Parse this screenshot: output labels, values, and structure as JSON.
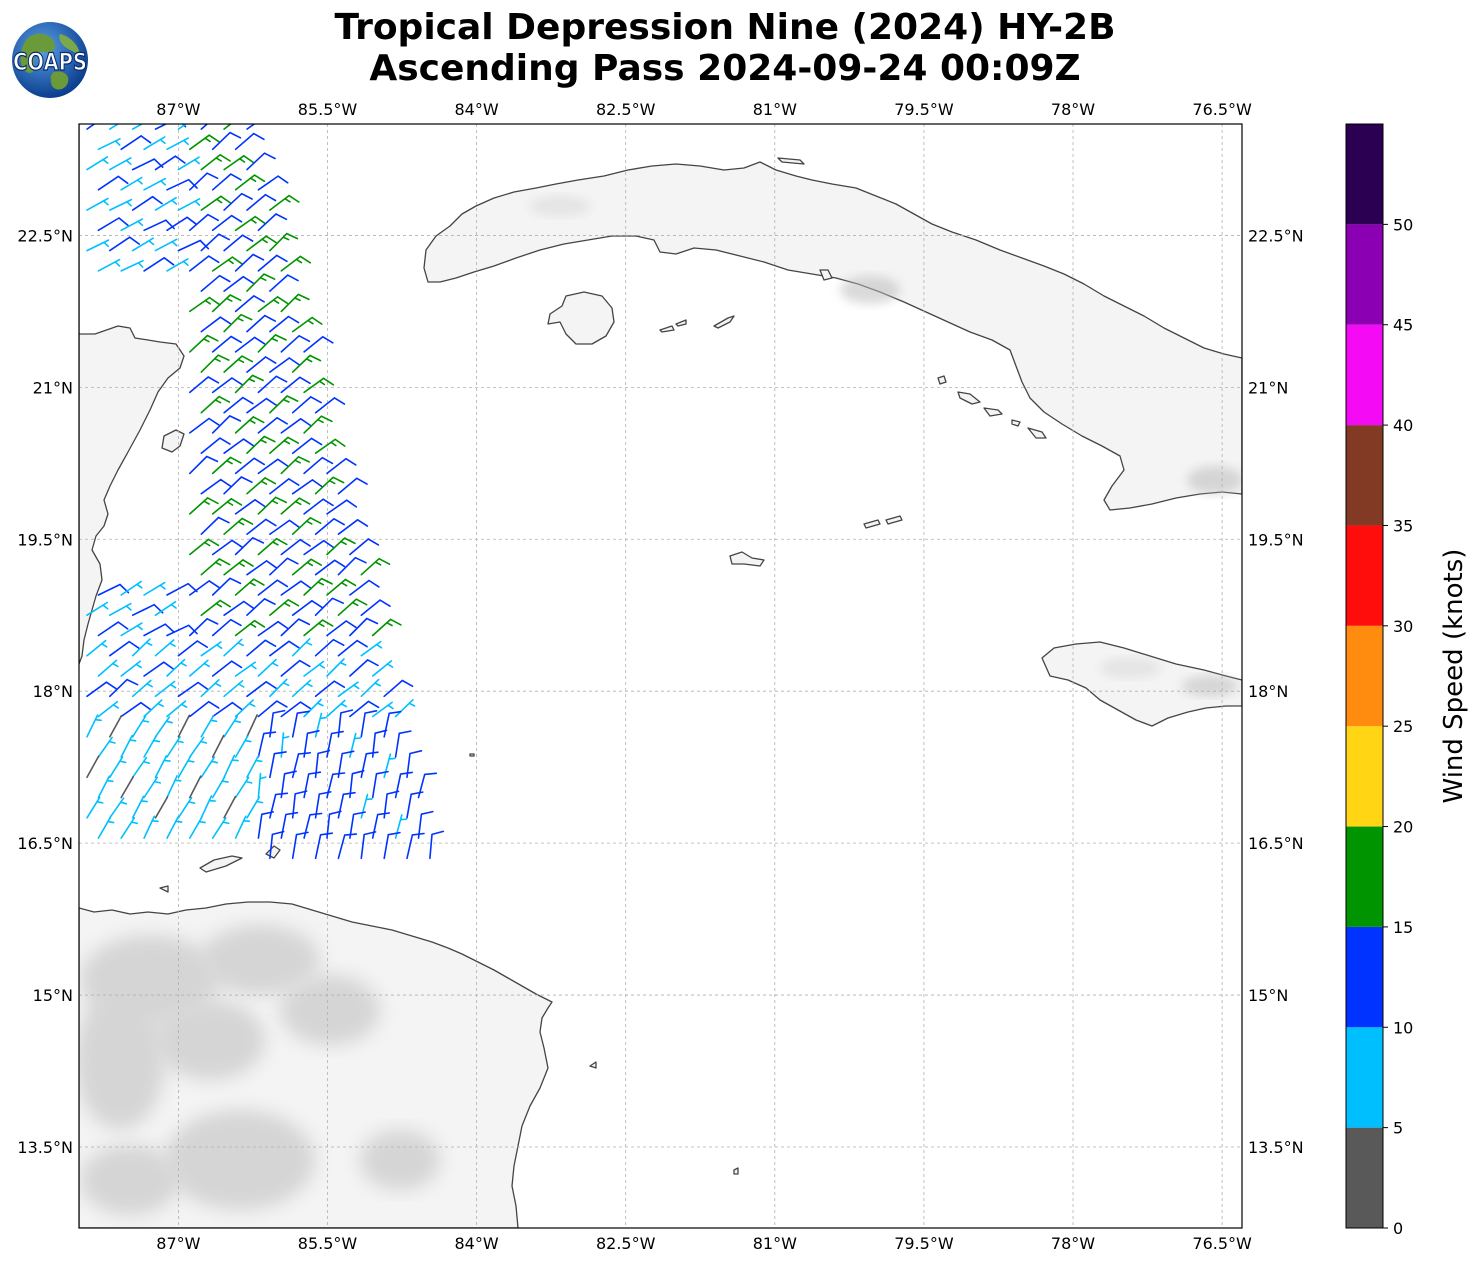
{
  "title": {
    "line1": "Tropical Depression Nine (2024) HY-2B",
    "line2": "Ascending Pass 2024-09-24 00:09Z"
  },
  "logo": {
    "text": "COAPS",
    "icon": "globe-logo"
  },
  "map": {
    "lon_range": [
      -88.0,
      -76.3
    ],
    "lat_range": [
      12.7,
      23.6
    ],
    "lon_ticks": [
      {
        "value": -87.0,
        "label": "87°W"
      },
      {
        "value": -85.5,
        "label": "85.5°W"
      },
      {
        "value": -84.0,
        "label": "84°W"
      },
      {
        "value": -82.5,
        "label": "82.5°W"
      },
      {
        "value": -81.0,
        "label": "81°W"
      },
      {
        "value": -79.5,
        "label": "79.5°W"
      },
      {
        "value": -78.0,
        "label": "78°W"
      },
      {
        "value": -76.5,
        "label": "76.5°W"
      }
    ],
    "lat_ticks": [
      {
        "value": 22.5,
        "label": "22.5°N"
      },
      {
        "value": 21.0,
        "label": "21°N"
      },
      {
        "value": 19.5,
        "label": "19.5°N"
      },
      {
        "value": 18.0,
        "label": "18°N"
      },
      {
        "value": 16.5,
        "label": "16.5°N"
      },
      {
        "value": 15.0,
        "label": "15°N"
      },
      {
        "value": 13.5,
        "label": "13.5°N"
      }
    ],
    "gridlines": true,
    "land_fill": "#f4f4f4",
    "coast_color": "#444444",
    "terrain_shade": "#bcbcbc"
  },
  "colorbar": {
    "label": "Wind Speed (knots)",
    "ticks": [
      "0",
      "5",
      "10",
      "15",
      "20",
      "25",
      "30",
      "35",
      "40",
      "45",
      "50"
    ],
    "bins": [
      {
        "min": 0,
        "max": 5,
        "color": "#595959"
      },
      {
        "min": 5,
        "max": 10,
        "color": "#00bfff"
      },
      {
        "min": 10,
        "max": 15,
        "color": "#0033ff"
      },
      {
        "min": 15,
        "max": 20,
        "color": "#009400"
      },
      {
        "min": 20,
        "max": 25,
        "color": "#ffd514"
      },
      {
        "min": 25,
        "max": 30,
        "color": "#ff8c0f"
      },
      {
        "min": 30,
        "max": 35,
        "color": "#ff0d0d"
      },
      {
        "min": 35,
        "max": 40,
        "color": "#833a25"
      },
      {
        "min": 40,
        "max": 45,
        "color": "#f50af5"
      },
      {
        "min": 45,
        "max": 50,
        "color": "#8c00b3"
      },
      {
        "min": 50,
        "max": 55,
        "color": "#2b0052"
      }
    ]
  },
  "chart_data": {
    "type": "scatter",
    "title": "Tropical Depression Nine (2024) HY-2B Ascending Pass 2024-09-24 00:09Z",
    "xlabel": "",
    "ylabel": "",
    "units": "knots",
    "pass_swath": {
      "lat_range": [
        16.3,
        23.6
      ],
      "west_edge_lon": [
        -88.0,
        -88.0
      ],
      "east_edge_lon_at_lat": [
        [
          23.6,
          -86.3
        ],
        [
          16.3,
          -84.4
        ]
      ]
    },
    "wind_regions": [
      {
        "lat_range": [
          22.0,
          23.6
        ],
        "lon_range": [
          -88.0,
          -86.6
        ],
        "speed_kt": 12,
        "dir_from_deg": 70
      },
      {
        "lat_range": [
          18.5,
          23.6
        ],
        "lon_range": [
          -86.9,
          -84.9
        ],
        "speed_kt": 17,
        "dir_from_deg": 60
      },
      {
        "lat_range": [
          18.5,
          19.0
        ],
        "lon_range": [
          -88.0,
          -87.0
        ],
        "speed_kt": 12,
        "dir_from_deg": 70
      },
      {
        "lat_range": [
          17.6,
          18.5
        ],
        "lon_range": [
          -88.0,
          -84.4
        ],
        "speed_kt": 12,
        "dir_from_deg": 60
      },
      {
        "lat_range": [
          16.5,
          17.6
        ],
        "lon_range": [
          -88.0,
          -86.3
        ],
        "speed_kt": 8,
        "dir_from_deg": 40
      },
      {
        "lat_range": [
          16.3,
          17.6
        ],
        "lon_range": [
          -86.3,
          -84.4
        ],
        "speed_kt": 13,
        "dir_from_deg": 20
      },
      {
        "lat_range": [
          16.3,
          16.9
        ],
        "lon_range": [
          -85.9,
          -85.5
        ],
        "speed_kt": 16,
        "dir_from_deg": 20
      }
    ]
  }
}
